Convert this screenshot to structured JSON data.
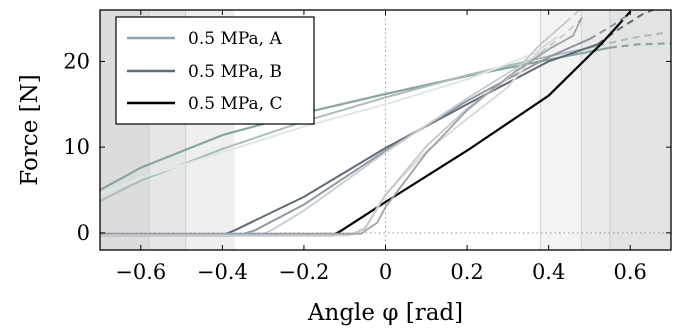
{
  "chart_data": {
    "type": "line",
    "xlabel": "Angle φ  [rad]",
    "ylabel": "Force  [N]",
    "xlim": [
      -0.7,
      0.7
    ],
    "ylim": [
      -2,
      26
    ],
    "xticks": [
      -0.6,
      -0.4,
      -0.2,
      0,
      0.2,
      0.4,
      0.6
    ],
    "xtick_labels": [
      "−0.6",
      "−0.4",
      "−0.2",
      "0",
      "0.2",
      "0.4",
      "0.6"
    ],
    "yticks": [
      0,
      10,
      20
    ],
    "ytick_labels": [
      "0",
      "10",
      "20"
    ],
    "grid": false,
    "reference_lines": "dotted lines at x = 0 and y = 0",
    "legend": {
      "placement": "top-left",
      "entries": [
        {
          "label": "0.5 MPa, A",
          "color": "#8aa6a4"
        },
        {
          "label": "0.5 MPa, B",
          "color": "#5f6b78"
        },
        {
          "label": "0.5 MPa, C",
          "color": "#000000"
        }
      ]
    },
    "shaded_regions": [
      {
        "x": [
          -0.7,
          -0.58
        ],
        "fill": "#dcdcdc"
      },
      {
        "x": [
          -0.58,
          -0.49
        ],
        "fill": "#e6e6e6"
      },
      {
        "x": [
          -0.49,
          -0.37
        ],
        "fill": "#efefef"
      },
      {
        "x": [
          0.38,
          0.48
        ],
        "fill": "#f3f3f3"
      },
      {
        "x": [
          0.48,
          0.55
        ],
        "fill": "#eaeaea"
      },
      {
        "x": [
          0.55,
          0.7
        ],
        "fill": "#e3e3e3"
      }
    ],
    "series": [
      {
        "name": "0.5 MPa, A",
        "color": "#8aa6a4",
        "width": 2.2,
        "points": [
          [
            -0.7,
            5.0
          ],
          [
            -0.6,
            7.6
          ],
          [
            -0.4,
            11.4
          ],
          [
            -0.2,
            14.0
          ],
          [
            0.0,
            16.2
          ],
          [
            0.2,
            18.3
          ],
          [
            0.4,
            20.2
          ],
          [
            0.55,
            21.6
          ]
        ],
        "dashed": [
          [
            0.55,
            21.6
          ],
          [
            0.62,
            22.0
          ],
          [
            0.7,
            22.1
          ]
        ]
      },
      {
        "color": "#aabdbb",
        "width": 2.0,
        "points": [
          [
            -0.7,
            3.7
          ],
          [
            -0.6,
            6.1
          ],
          [
            -0.4,
            9.8
          ],
          [
            -0.2,
            13.0
          ],
          [
            0.0,
            15.8
          ],
          [
            0.2,
            18.4
          ],
          [
            0.4,
            20.6
          ],
          [
            0.52,
            21.8
          ]
        ],
        "dashed": [
          [
            0.52,
            21.8
          ],
          [
            0.6,
            22.7
          ],
          [
            0.68,
            23.3
          ]
        ]
      },
      {
        "color": "#e1e7e6",
        "width": 2.0,
        "points": [
          [
            -0.7,
            4.5
          ],
          [
            -0.6,
            6.4
          ],
          [
            -0.4,
            9.4
          ],
          [
            -0.2,
            12.4
          ],
          [
            0.0,
            15.0
          ],
          [
            0.2,
            17.9
          ],
          [
            0.38,
            21.2
          ],
          [
            0.42,
            22.0
          ]
        ],
        "dashed": []
      },
      {
        "name": "0.5 MPa, B",
        "color": "#5f6b78",
        "width": 2.0,
        "points": [
          [
            -0.7,
            -0.3
          ],
          [
            -0.4,
            -0.3
          ],
          [
            -0.37,
            0.3
          ],
          [
            -0.2,
            4.2
          ],
          [
            0.0,
            9.9
          ],
          [
            0.2,
            15.0
          ],
          [
            0.4,
            20.0
          ],
          [
            0.52,
            22.0
          ]
        ],
        "dashed": [
          [
            0.52,
            22.0
          ],
          [
            0.57,
            23.7
          ],
          [
            0.63,
            25.5
          ],
          [
            0.67,
            26.3
          ]
        ]
      },
      {
        "color": "#8e97a2",
        "width": 2.0,
        "points": [
          [
            -0.7,
            -0.3
          ],
          [
            -0.36,
            -0.3
          ],
          [
            -0.32,
            0.3
          ],
          [
            -0.2,
            3.3
          ],
          [
            0.0,
            9.6
          ],
          [
            0.2,
            15.4
          ],
          [
            0.4,
            20.5
          ],
          [
            0.5,
            22.6
          ]
        ],
        "dashed": [
          [
            0.5,
            22.6
          ],
          [
            0.56,
            24.3
          ],
          [
            0.6,
            25.6
          ]
        ]
      },
      {
        "color": "#c7ccd1",
        "width": 1.8,
        "points": [
          [
            -0.7,
            -0.3
          ],
          [
            -0.31,
            -0.3
          ],
          [
            -0.28,
            0.3
          ],
          [
            -0.2,
            2.6
          ],
          [
            0.0,
            9.4
          ],
          [
            0.2,
            15.7
          ],
          [
            0.38,
            21.0
          ]
        ],
        "dashed": [
          [
            0.38,
            21.0
          ],
          [
            0.44,
            23.2
          ],
          [
            0.49,
            25.4
          ]
        ]
      },
      {
        "name": "0.5 MPa, C",
        "color": "#000000",
        "width": 2.2,
        "points": [
          [
            -0.7,
            -0.3
          ],
          [
            -0.13,
            -0.3
          ],
          [
            -0.11,
            0.2
          ],
          [
            0.0,
            3.6
          ],
          [
            0.2,
            9.6
          ],
          [
            0.4,
            16.0
          ],
          [
            0.53,
            22.1
          ],
          [
            0.57,
            24.2
          ]
        ],
        "dashed": [
          [
            0.57,
            24.2
          ],
          [
            0.6,
            25.8
          ],
          [
            0.62,
            26.5
          ]
        ]
      },
      {
        "color": "#dadada",
        "width": 2.0,
        "points": [
          [
            -0.7,
            -0.3
          ],
          [
            -0.09,
            -0.3
          ],
          [
            -0.05,
            0.6
          ],
          [
            0.0,
            4.5
          ],
          [
            0.1,
            9.5
          ],
          [
            0.2,
            13.3
          ],
          [
            0.3,
            17.0
          ],
          [
            0.38,
            21.5
          ],
          [
            0.42,
            22.8
          ]
        ],
        "dashed": []
      },
      {
        "color": "#c4c8cc",
        "width": 1.8,
        "points": [
          [
            -0.7,
            -0.2
          ],
          [
            -0.08,
            -0.2
          ],
          [
            -0.05,
            0.5
          ],
          [
            0.0,
            4.4
          ],
          [
            0.1,
            10.1
          ],
          [
            0.2,
            14.5
          ],
          [
            0.3,
            18.0
          ],
          [
            0.38,
            22.0
          ],
          [
            0.44,
            24.5
          ]
        ],
        "dashed": [
          [
            0.44,
            24.5
          ],
          [
            0.48,
            26.2
          ]
        ]
      },
      {
        "color": "#9da3a9",
        "width": 1.8,
        "points": [
          [
            -0.7,
            -0.1
          ],
          [
            -0.06,
            -0.1
          ],
          [
            -0.02,
            1.2
          ],
          [
            0.0,
            3.0
          ],
          [
            0.1,
            9.3
          ],
          [
            0.2,
            14.3
          ],
          [
            0.3,
            18.2
          ],
          [
            0.4,
            21.4
          ],
          [
            0.46,
            23.0
          ],
          [
            0.48,
            25.0
          ]
        ],
        "dashed": []
      }
    ]
  }
}
